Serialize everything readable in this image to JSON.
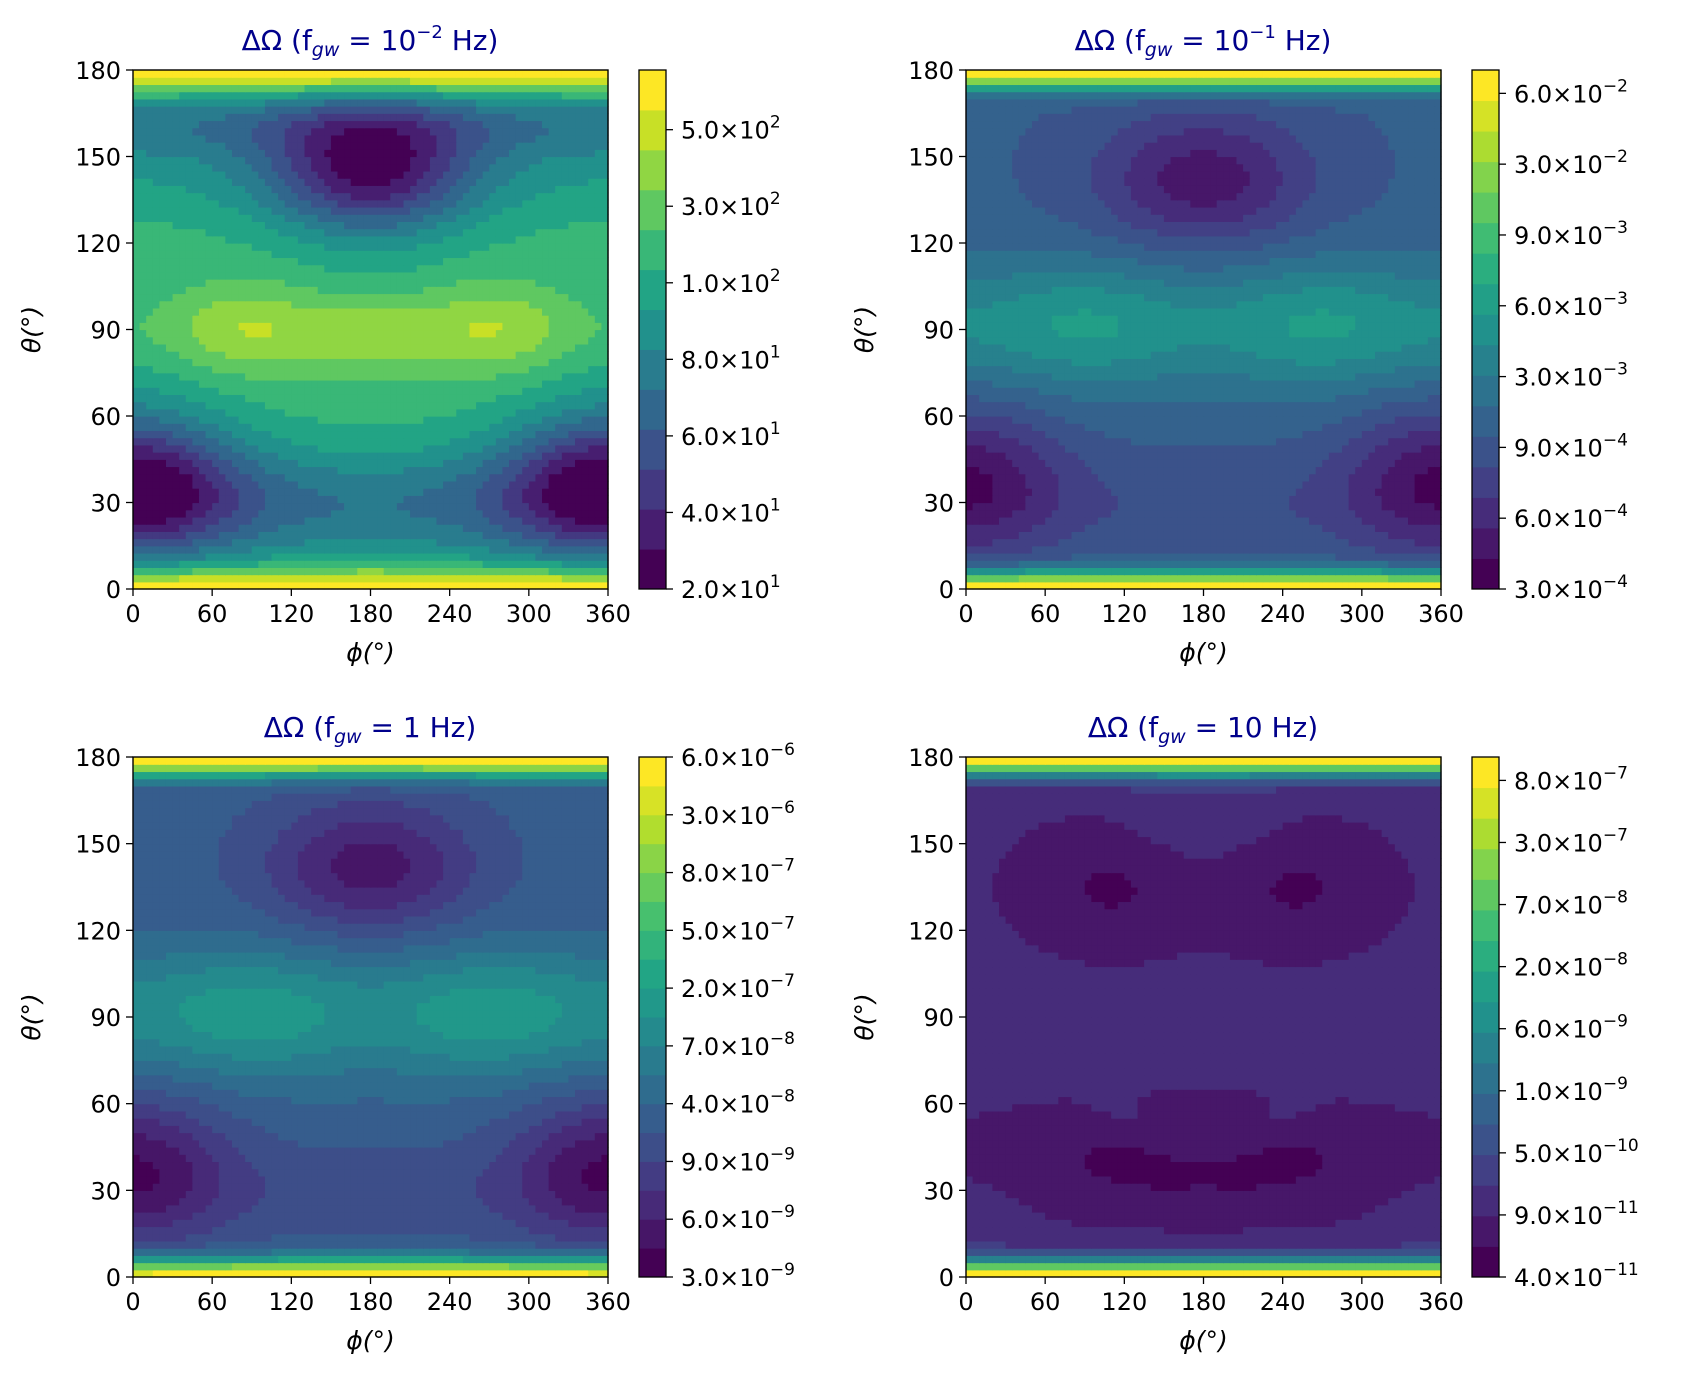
{
  "colormap": [
    "#440154",
    "#482475",
    "#414487",
    "#355f8d",
    "#2a788e",
    "#21918c",
    "#22a884",
    "#44bf70",
    "#7ad151",
    "#bddf26",
    "#fde725"
  ],
  "chart_data": [
    {
      "type": "contourf",
      "title_prefix": "ΔΩ (f",
      "title_sub": "gw",
      "title_eq": " = 10",
      "title_sup": "−2",
      "title_unit": " Hz)",
      "xlabel": "ϕ(°)",
      "ylabel": "θ(°)",
      "xlim": [
        0,
        360
      ],
      "ylim": [
        0,
        180
      ],
      "xticks": [
        "0",
        "60",
        "120",
        "180",
        "240",
        "300",
        "360"
      ],
      "yticks": [
        "0",
        "30",
        "60",
        "90",
        "120",
        "150",
        "180"
      ],
      "colorbar_ticks": [
        {
          "mantissa": "2.0",
          "exponent": "1"
        },
        {
          "mantissa": "4.0",
          "exponent": "1"
        },
        {
          "mantissa": "6.0",
          "exponent": "1"
        },
        {
          "mantissa": "8.0",
          "exponent": "1"
        },
        {
          "mantissa": "1.0",
          "exponent": "2"
        },
        {
          "mantissa": "3.0",
          "exponent": "2"
        },
        {
          "mantissa": "5.0",
          "exponent": "2"
        }
      ],
      "levels": 13,
      "pattern": "mid-high",
      "minima_theta": [
        40,
        145
      ],
      "maxima_theta": [
        90,
        180,
        0
      ]
    },
    {
      "type": "contourf",
      "title_prefix": "ΔΩ (f",
      "title_sub": "gw",
      "title_eq": " = 10",
      "title_sup": "−1",
      "title_unit": " Hz)",
      "xlabel": "ϕ(°)",
      "ylabel": "θ(°)",
      "xlim": [
        0,
        360
      ],
      "ylim": [
        0,
        180
      ],
      "xticks": [
        "0",
        "60",
        "120",
        "180",
        "240",
        "300",
        "360"
      ],
      "yticks": [
        "0",
        "30",
        "60",
        "90",
        "120",
        "150",
        "180"
      ],
      "colorbar_ticks": [
        {
          "mantissa": "3.0",
          "exponent": "−4"
        },
        {
          "mantissa": "6.0",
          "exponent": "−4"
        },
        {
          "mantissa": "9.0",
          "exponent": "−4"
        },
        {
          "mantissa": "3.0",
          "exponent": "−3"
        },
        {
          "mantissa": "6.0",
          "exponent": "−3"
        },
        {
          "mantissa": "9.0",
          "exponent": "−3"
        },
        {
          "mantissa": "3.0",
          "exponent": "−2"
        },
        {
          "mantissa": "6.0",
          "exponent": "−2"
        }
      ],
      "levels": 17,
      "pattern": "edge-high",
      "minima_theta": [
        38,
        140
      ],
      "maxima_theta": [
        0,
        180
      ]
    },
    {
      "type": "contourf",
      "title_prefix": "ΔΩ (f",
      "title_sub": "gw",
      "title_eq": " = 1",
      "title_sup": "",
      "title_unit": " Hz)",
      "xlabel": "ϕ(°)",
      "ylabel": "θ(°)",
      "xlim": [
        0,
        360
      ],
      "ylim": [
        0,
        180
      ],
      "xticks": [
        "0",
        "60",
        "120",
        "180",
        "240",
        "300",
        "360"
      ],
      "yticks": [
        "0",
        "30",
        "60",
        "90",
        "120",
        "150",
        "180"
      ],
      "colorbar_ticks": [
        {
          "mantissa": "3.0",
          "exponent": "−9"
        },
        {
          "mantissa": "6.0",
          "exponent": "−9"
        },
        {
          "mantissa": "9.0",
          "exponent": "−9"
        },
        {
          "mantissa": "4.0",
          "exponent": "−8"
        },
        {
          "mantissa": "7.0",
          "exponent": "−8"
        },
        {
          "mantissa": "2.0",
          "exponent": "−7"
        },
        {
          "mantissa": "5.0",
          "exponent": "−7"
        },
        {
          "mantissa": "8.0",
          "exponent": "−7"
        },
        {
          "mantissa": "3.0",
          "exponent": "−6"
        },
        {
          "mantissa": "6.0",
          "exponent": "−6"
        }
      ],
      "levels": 18,
      "pattern": "edge-high",
      "minima_theta": [
        38,
        143
      ],
      "maxima_theta": [
        0,
        180
      ]
    },
    {
      "type": "contourf",
      "title_prefix": "ΔΩ (f",
      "title_sub": "gw",
      "title_eq": " = 10",
      "title_sup": "",
      "title_unit": " Hz)",
      "xlabel": "ϕ(°)",
      "ylabel": "θ(°)",
      "xlim": [
        0,
        360
      ],
      "ylim": [
        0,
        180
      ],
      "xticks": [
        "0",
        "60",
        "120",
        "180",
        "240",
        "300",
        "360"
      ],
      "yticks": [
        "0",
        "30",
        "60",
        "90",
        "120",
        "150",
        "180"
      ],
      "colorbar_ticks": [
        {
          "mantissa": "4.0",
          "exponent": "−11"
        },
        {
          "mantissa": "9.0",
          "exponent": "−11"
        },
        {
          "mantissa": "5.0",
          "exponent": "−10"
        },
        {
          "mantissa": "1.0",
          "exponent": "−9"
        },
        {
          "mantissa": "6.0",
          "exponent": "−9"
        },
        {
          "mantissa": "2.0",
          "exponent": "−8"
        },
        {
          "mantissa": "7.0",
          "exponent": "−8"
        },
        {
          "mantissa": "3.0",
          "exponent": "−7"
        },
        {
          "mantissa": "8.0",
          "exponent": "−7"
        }
      ],
      "levels": 17,
      "pattern": "edge-high-dark-arcs",
      "minima_theta": [
        45,
        135
      ],
      "maxima_theta": [
        0,
        180
      ]
    }
  ]
}
